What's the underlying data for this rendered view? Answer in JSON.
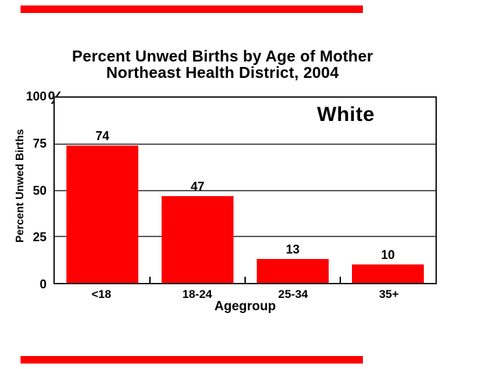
{
  "slide": {
    "accent_color": "#ff0000"
  },
  "title": {
    "line1": "Percent Unwed Births by Age of Mother",
    "line2": "Northeast Health District, 2004"
  },
  "y_axis": {
    "label": "Percent Unwed Births",
    "unit_symbol": "%"
  },
  "x_axis": {
    "label": "Agegroup"
  },
  "annotation": {
    "label": "White"
  },
  "chart_data": {
    "type": "bar",
    "title": "Percent Unwed Births by Age of Mother Northeast Health District, 2004",
    "categories": [
      "<18",
      "18-24",
      "25-34",
      "35+"
    ],
    "values": [
      74,
      47,
      13,
      10
    ],
    "xlabel": "Agegroup",
    "ylabel": "Percent Unwed Births",
    "yticks": [
      0,
      25,
      50,
      75,
      100
    ],
    "ylim": [
      0,
      100
    ],
    "bar_color": "#ff0000",
    "gridline_color": "#595959",
    "grid": "horizontal",
    "legend": "none",
    "annotation": "White"
  }
}
